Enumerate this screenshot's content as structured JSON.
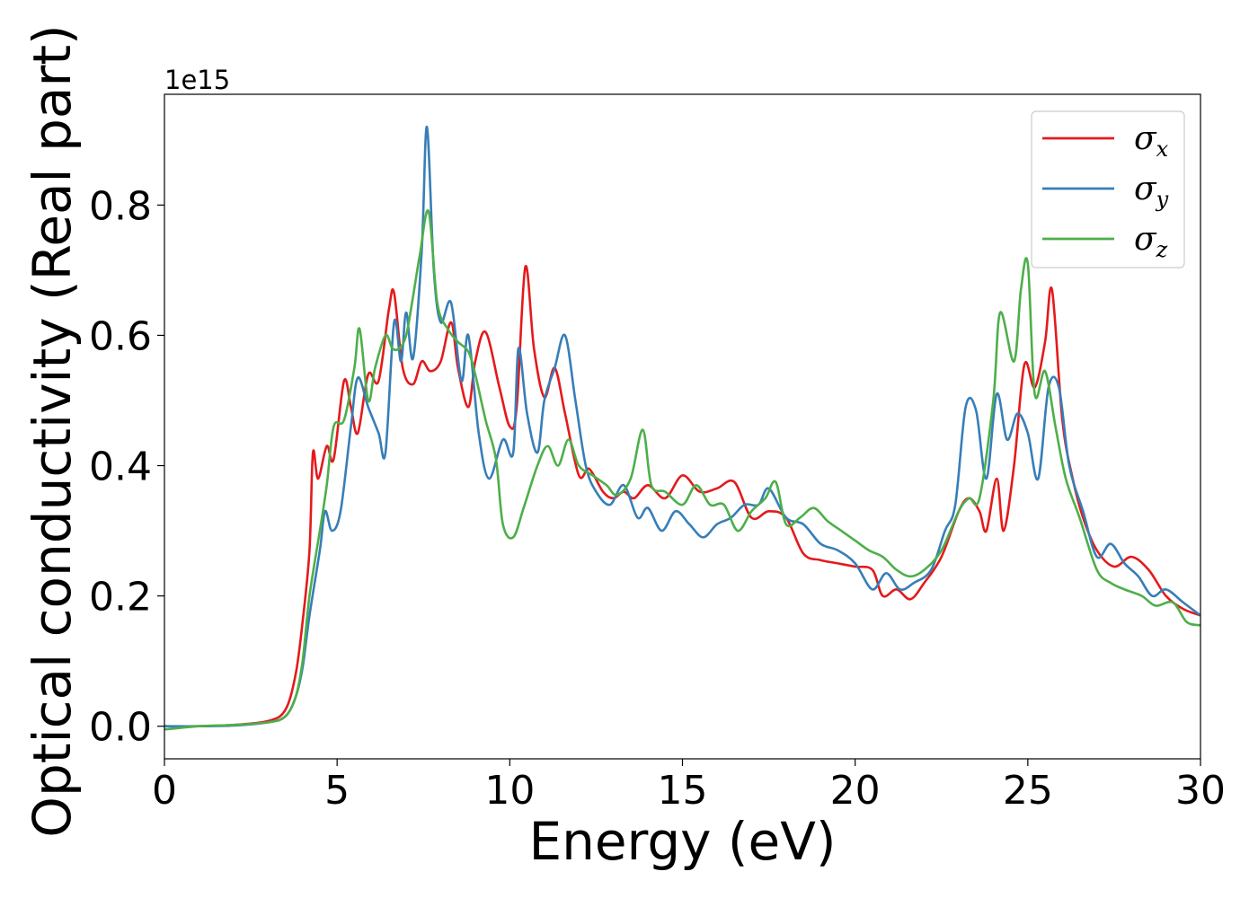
{
  "chart_data": {
    "type": "line",
    "title": "",
    "xlabel": "Energy (eV)",
    "ylabel": "Optical conductivity (Real part)",
    "y_offset_label": "1e15",
    "xlim": [
      0,
      30
    ],
    "ylim": [
      -0.05,
      0.97
    ],
    "x_ticks": [
      0,
      5,
      10,
      15,
      20,
      25,
      30
    ],
    "x_tick_labels": [
      "0",
      "5",
      "10",
      "15",
      "20",
      "25",
      "30"
    ],
    "y_ticks": [
      0.0,
      0.2,
      0.4,
      0.6,
      0.8
    ],
    "y_tick_labels": [
      "0.0",
      "0.2",
      "0.4",
      "0.6",
      "0.8"
    ],
    "grid": false,
    "legend_position": "top-right",
    "series": [
      {
        "name": "σx",
        "symbol": "σ",
        "subscript": "x",
        "color": "#e41a1c",
        "points": [
          [
            0,
            0.0
          ],
          [
            1,
            0.0
          ],
          [
            2,
            0.002
          ],
          [
            3,
            0.008
          ],
          [
            3.5,
            0.025
          ],
          [
            3.8,
            0.08
          ],
          [
            4.0,
            0.16
          ],
          [
            4.2,
            0.27
          ],
          [
            4.3,
            0.42
          ],
          [
            4.45,
            0.38
          ],
          [
            4.7,
            0.43
          ],
          [
            4.9,
            0.41
          ],
          [
            5.2,
            0.53
          ],
          [
            5.4,
            0.49
          ],
          [
            5.6,
            0.45
          ],
          [
            5.9,
            0.54
          ],
          [
            6.2,
            0.53
          ],
          [
            6.5,
            0.64
          ],
          [
            6.65,
            0.665
          ],
          [
            6.9,
            0.55
          ],
          [
            7.2,
            0.525
          ],
          [
            7.45,
            0.56
          ],
          [
            7.7,
            0.545
          ],
          [
            8.0,
            0.56
          ],
          [
            8.3,
            0.62
          ],
          [
            8.5,
            0.55
          ],
          [
            8.8,
            0.49
          ],
          [
            9.0,
            0.56
          ],
          [
            9.3,
            0.605
          ],
          [
            9.7,
            0.52
          ],
          [
            10.0,
            0.46
          ],
          [
            10.2,
            0.49
          ],
          [
            10.45,
            0.705
          ],
          [
            10.7,
            0.58
          ],
          [
            11.0,
            0.505
          ],
          [
            11.3,
            0.55
          ],
          [
            11.6,
            0.48
          ],
          [
            12.0,
            0.385
          ],
          [
            12.3,
            0.395
          ],
          [
            12.7,
            0.36
          ],
          [
            13.0,
            0.35
          ],
          [
            13.3,
            0.36
          ],
          [
            13.6,
            0.35
          ],
          [
            14.0,
            0.37
          ],
          [
            14.5,
            0.35
          ],
          [
            15.0,
            0.385
          ],
          [
            15.5,
            0.36
          ],
          [
            16.0,
            0.365
          ],
          [
            16.5,
            0.375
          ],
          [
            17.0,
            0.32
          ],
          [
            17.5,
            0.33
          ],
          [
            18.0,
            0.32
          ],
          [
            18.5,
            0.265
          ],
          [
            19.0,
            0.255
          ],
          [
            19.5,
            0.25
          ],
          [
            20.0,
            0.245
          ],
          [
            20.5,
            0.24
          ],
          [
            20.8,
            0.2
          ],
          [
            21.2,
            0.21
          ],
          [
            21.6,
            0.195
          ],
          [
            22.0,
            0.22
          ],
          [
            22.5,
            0.26
          ],
          [
            23.0,
            0.33
          ],
          [
            23.3,
            0.35
          ],
          [
            23.6,
            0.33
          ],
          [
            23.8,
            0.3
          ],
          [
            24.1,
            0.38
          ],
          [
            24.3,
            0.3
          ],
          [
            24.6,
            0.4
          ],
          [
            24.9,
            0.555
          ],
          [
            25.2,
            0.52
          ],
          [
            25.5,
            0.59
          ],
          [
            25.7,
            0.67
          ],
          [
            26.0,
            0.47
          ],
          [
            26.3,
            0.38
          ],
          [
            26.6,
            0.32
          ],
          [
            27.0,
            0.27
          ],
          [
            27.5,
            0.245
          ],
          [
            28.0,
            0.26
          ],
          [
            28.5,
            0.24
          ],
          [
            29.0,
            0.2
          ],
          [
            29.5,
            0.18
          ],
          [
            30,
            0.17
          ]
        ]
      },
      {
        "name": "σy",
        "symbol": "σ",
        "subscript": "y",
        "color": "#377eb8",
        "points": [
          [
            0,
            0.0
          ],
          [
            1,
            0.0
          ],
          [
            2,
            0.001
          ],
          [
            3,
            0.006
          ],
          [
            3.5,
            0.015
          ],
          [
            3.8,
            0.045
          ],
          [
            4.0,
            0.09
          ],
          [
            4.2,
            0.17
          ],
          [
            4.5,
            0.27
          ],
          [
            4.65,
            0.33
          ],
          [
            4.85,
            0.3
          ],
          [
            5.1,
            0.33
          ],
          [
            5.4,
            0.46
          ],
          [
            5.6,
            0.535
          ],
          [
            5.9,
            0.49
          ],
          [
            6.2,
            0.45
          ],
          [
            6.4,
            0.42
          ],
          [
            6.65,
            0.62
          ],
          [
            6.85,
            0.56
          ],
          [
            7.0,
            0.635
          ],
          [
            7.2,
            0.565
          ],
          [
            7.45,
            0.73
          ],
          [
            7.6,
            0.92
          ],
          [
            7.8,
            0.7
          ],
          [
            8.0,
            0.62
          ],
          [
            8.3,
            0.65
          ],
          [
            8.6,
            0.53
          ],
          [
            8.8,
            0.6
          ],
          [
            9.1,
            0.45
          ],
          [
            9.4,
            0.38
          ],
          [
            9.8,
            0.44
          ],
          [
            10.1,
            0.42
          ],
          [
            10.25,
            0.58
          ],
          [
            10.5,
            0.48
          ],
          [
            10.8,
            0.42
          ],
          [
            11.0,
            0.5
          ],
          [
            11.3,
            0.55
          ],
          [
            11.6,
            0.6
          ],
          [
            11.9,
            0.5
          ],
          [
            12.2,
            0.4
          ],
          [
            12.5,
            0.36
          ],
          [
            12.9,
            0.34
          ],
          [
            13.3,
            0.37
          ],
          [
            13.7,
            0.32
          ],
          [
            14.0,
            0.335
          ],
          [
            14.4,
            0.3
          ],
          [
            14.8,
            0.33
          ],
          [
            15.2,
            0.31
          ],
          [
            15.6,
            0.29
          ],
          [
            16.0,
            0.31
          ],
          [
            16.4,
            0.32
          ],
          [
            16.8,
            0.34
          ],
          [
            17.2,
            0.34
          ],
          [
            17.5,
            0.365
          ],
          [
            18.0,
            0.32
          ],
          [
            18.5,
            0.31
          ],
          [
            19.0,
            0.28
          ],
          [
            19.5,
            0.27
          ],
          [
            20.0,
            0.25
          ],
          [
            20.5,
            0.21
          ],
          [
            20.9,
            0.235
          ],
          [
            21.3,
            0.21
          ],
          [
            21.7,
            0.22
          ],
          [
            22.2,
            0.24
          ],
          [
            22.6,
            0.3
          ],
          [
            22.9,
            0.34
          ],
          [
            23.2,
            0.49
          ],
          [
            23.5,
            0.485
          ],
          [
            23.8,
            0.38
          ],
          [
            24.1,
            0.51
          ],
          [
            24.4,
            0.44
          ],
          [
            24.7,
            0.48
          ],
          [
            25.0,
            0.45
          ],
          [
            25.3,
            0.38
          ],
          [
            25.6,
            0.52
          ],
          [
            25.9,
            0.52
          ],
          [
            26.2,
            0.4
          ],
          [
            26.6,
            0.33
          ],
          [
            27.0,
            0.26
          ],
          [
            27.4,
            0.28
          ],
          [
            27.8,
            0.25
          ],
          [
            28.2,
            0.23
          ],
          [
            28.6,
            0.2
          ],
          [
            29.0,
            0.21
          ],
          [
            29.5,
            0.19
          ],
          [
            30,
            0.17
          ]
        ]
      },
      {
        "name": "σz",
        "symbol": "σ",
        "subscript": "z",
        "color": "#4daf4a",
        "points": [
          [
            0,
            -0.005
          ],
          [
            1,
            0.0
          ],
          [
            2,
            0.002
          ],
          [
            3,
            0.006
          ],
          [
            3.5,
            0.015
          ],
          [
            3.8,
            0.045
          ],
          [
            4.0,
            0.1
          ],
          [
            4.2,
            0.2
          ],
          [
            4.5,
            0.3
          ],
          [
            4.7,
            0.37
          ],
          [
            4.9,
            0.46
          ],
          [
            5.2,
            0.47
          ],
          [
            5.5,
            0.55
          ],
          [
            5.65,
            0.61
          ],
          [
            5.9,
            0.5
          ],
          [
            6.1,
            0.55
          ],
          [
            6.4,
            0.6
          ],
          [
            6.6,
            0.58
          ],
          [
            6.8,
            0.58
          ],
          [
            7.0,
            0.6
          ],
          [
            7.2,
            0.66
          ],
          [
            7.4,
            0.725
          ],
          [
            7.65,
            0.79
          ],
          [
            7.9,
            0.65
          ],
          [
            8.2,
            0.61
          ],
          [
            8.5,
            0.59
          ],
          [
            8.8,
            0.575
          ],
          [
            9.0,
            0.54
          ],
          [
            9.3,
            0.47
          ],
          [
            9.6,
            0.41
          ],
          [
            9.8,
            0.31
          ],
          [
            10.1,
            0.29
          ],
          [
            10.4,
            0.335
          ],
          [
            10.8,
            0.4
          ],
          [
            11.1,
            0.43
          ],
          [
            11.4,
            0.4
          ],
          [
            11.7,
            0.44
          ],
          [
            12.0,
            0.4
          ],
          [
            12.4,
            0.385
          ],
          [
            12.8,
            0.37
          ],
          [
            13.1,
            0.355
          ],
          [
            13.5,
            0.38
          ],
          [
            13.85,
            0.455
          ],
          [
            14.1,
            0.37
          ],
          [
            14.5,
            0.36
          ],
          [
            15.0,
            0.34
          ],
          [
            15.4,
            0.37
          ],
          [
            15.8,
            0.34
          ],
          [
            16.2,
            0.34
          ],
          [
            16.6,
            0.3
          ],
          [
            17.0,
            0.33
          ],
          [
            17.4,
            0.35
          ],
          [
            17.7,
            0.375
          ],
          [
            18.0,
            0.31
          ],
          [
            18.4,
            0.32
          ],
          [
            18.8,
            0.335
          ],
          [
            19.2,
            0.315
          ],
          [
            19.6,
            0.3
          ],
          [
            20.0,
            0.285
          ],
          [
            20.4,
            0.27
          ],
          [
            20.8,
            0.26
          ],
          [
            21.2,
            0.24
          ],
          [
            21.6,
            0.23
          ],
          [
            22.0,
            0.24
          ],
          [
            22.5,
            0.27
          ],
          [
            23.0,
            0.33
          ],
          [
            23.3,
            0.35
          ],
          [
            23.6,
            0.35
          ],
          [
            24.0,
            0.5
          ],
          [
            24.2,
            0.635
          ],
          [
            24.6,
            0.56
          ],
          [
            24.8,
            0.67
          ],
          [
            25.0,
            0.71
          ],
          [
            25.2,
            0.51
          ],
          [
            25.5,
            0.545
          ],
          [
            25.8,
            0.46
          ],
          [
            26.1,
            0.38
          ],
          [
            26.5,
            0.32
          ],
          [
            27.0,
            0.24
          ],
          [
            27.4,
            0.22
          ],
          [
            27.8,
            0.21
          ],
          [
            28.3,
            0.2
          ],
          [
            28.7,
            0.185
          ],
          [
            29.2,
            0.19
          ],
          [
            29.6,
            0.16
          ],
          [
            30,
            0.155
          ]
        ]
      }
    ]
  }
}
